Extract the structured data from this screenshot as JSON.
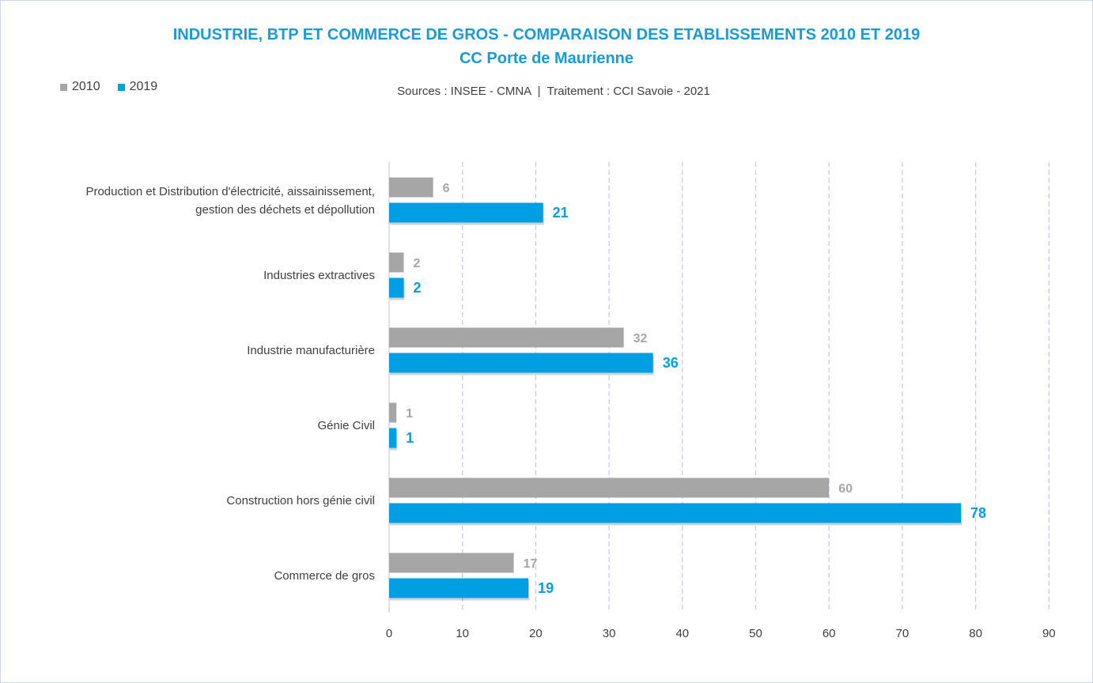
{
  "colors": {
    "s2010": "#a6a6a6",
    "s2019": "#009fe3",
    "title": "#1a9ad6",
    "grid": "#c9c9ef",
    "axis": "#d9d9d9"
  },
  "source_text": "Sources : INSEE - CMNA  |  Traitement : CCI Savoie - 2021",
  "chart_data": {
    "type": "bar",
    "orientation": "horizontal",
    "title": "INDUSTRIE, BTP ET COMMERCE DE GROS - COMPARAISON DES ETABLISSEMENTS 2010 ET 2019",
    "subtitle": "CC Porte de Maurienne",
    "categories": [
      [
        "Production et Distribution d'électricité, aissainissement,",
        "gestion des déchets et dépollution"
      ],
      [
        "Industries extractives"
      ],
      [
        "Industrie manufacturière"
      ],
      [
        "Génie Civil"
      ],
      [
        "Construction hors génie civil"
      ],
      [
        "Commerce de gros"
      ]
    ],
    "series": [
      {
        "name": "2010",
        "values": [
          6,
          2,
          32,
          1,
          60,
          17
        ]
      },
      {
        "name": "2019",
        "values": [
          21,
          2,
          36,
          1,
          78,
          19
        ]
      }
    ],
    "xlim": [
      0,
      90
    ],
    "xticks": [
      0,
      10,
      20,
      30,
      40,
      50,
      60,
      70,
      80,
      90
    ],
    "grid": true,
    "legend": "top-left"
  }
}
